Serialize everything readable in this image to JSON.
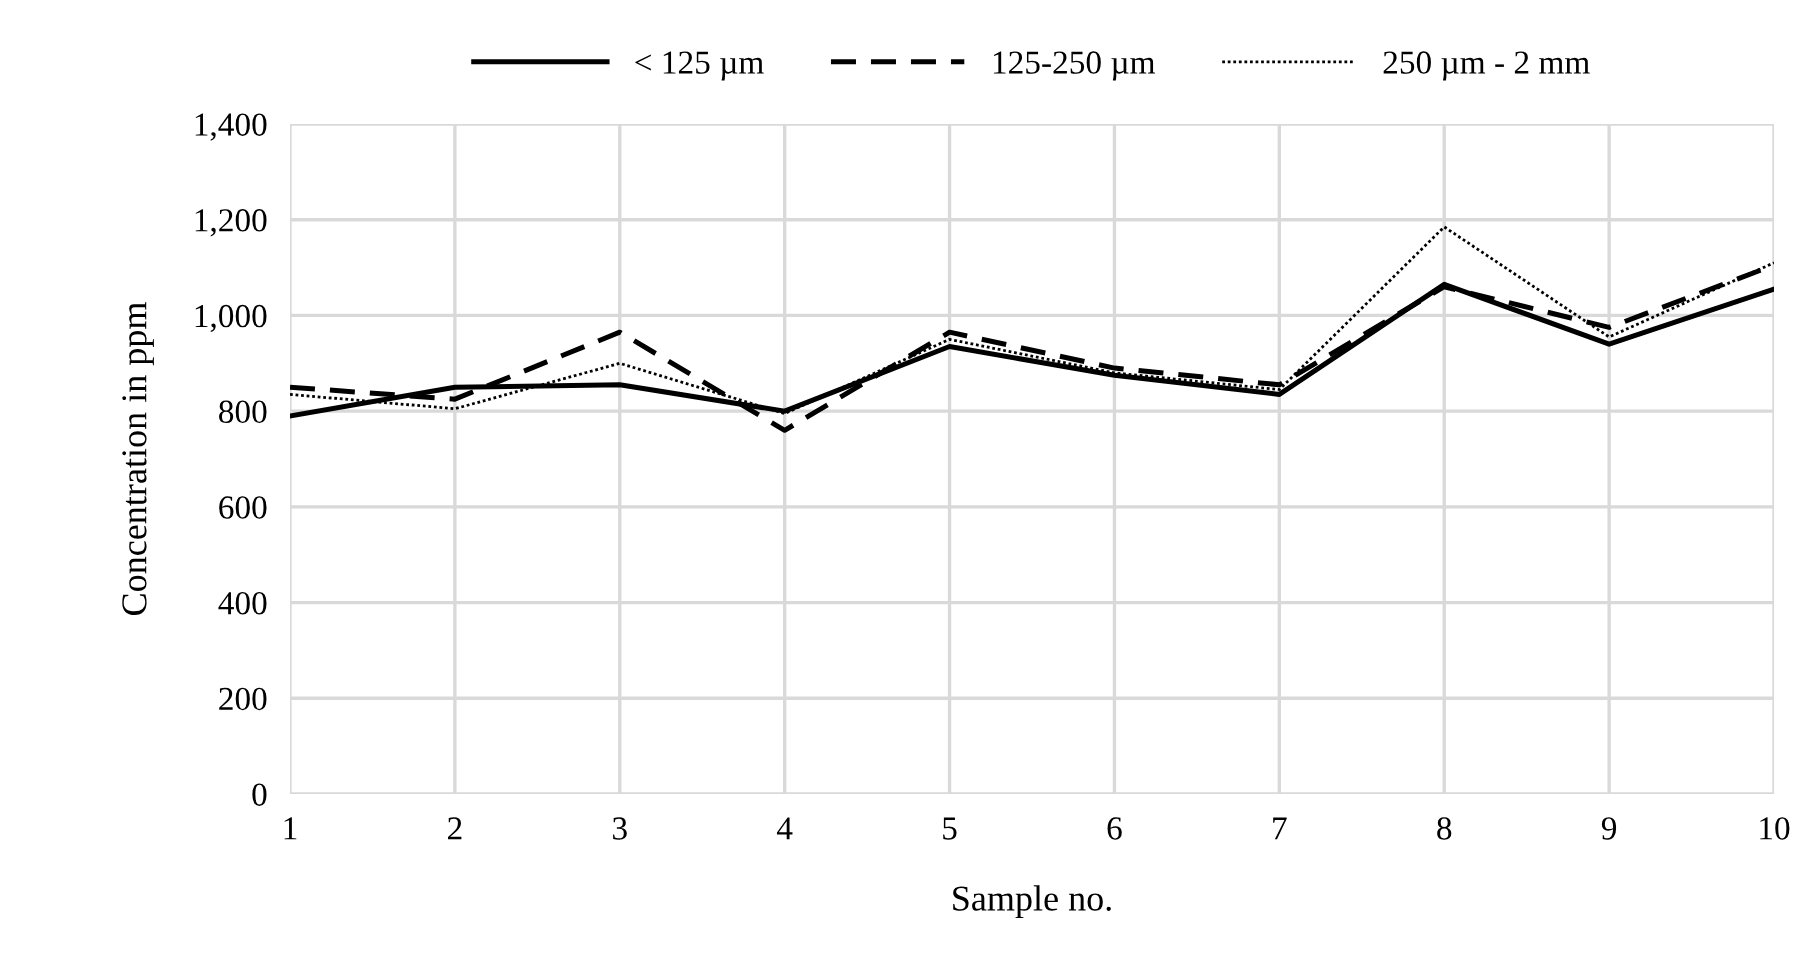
{
  "chart_data": {
    "type": "line",
    "xlabel": "Sample no.",
    "ylabel": "Concentration in ppm",
    "x": [
      1,
      2,
      3,
      4,
      5,
      6,
      7,
      8,
      9,
      10
    ],
    "series": [
      {
        "name": "< 125 µm",
        "color": "#000000",
        "line_style": "solid",
        "values": [
          790,
          850,
          855,
          800,
          935,
          875,
          835,
          1065,
          940,
          1055
        ]
      },
      {
        "name": "125-250 µm",
        "color": "#000000",
        "line_style": "dashed",
        "values": [
          850,
          825,
          965,
          760,
          965,
          890,
          855,
          1060,
          975,
          1105
        ]
      },
      {
        "name": "250 µm - 2 mm",
        "color": "#000000",
        "line_style": "dotted",
        "values": [
          835,
          805,
          900,
          795,
          950,
          880,
          845,
          1185,
          955,
          1110
        ]
      }
    ],
    "xlim": [
      1,
      10
    ],
    "xticks": [
      1,
      2,
      3,
      4,
      5,
      6,
      7,
      8,
      9,
      10
    ],
    "ylim": [
      0,
      1400
    ],
    "yticks": [
      {
        "value": 0,
        "label": "0"
      },
      {
        "value": 200,
        "label": "200"
      },
      {
        "value": 400,
        "label": "400"
      },
      {
        "value": 600,
        "label": "600"
      },
      {
        "value": 800,
        "label": "800"
      },
      {
        "value": 1000,
        "label": "1,000"
      },
      {
        "value": 1200,
        "label": "1,200"
      },
      {
        "value": 1400,
        "label": "1,400"
      }
    ],
    "grid": true,
    "legend": "top"
  }
}
